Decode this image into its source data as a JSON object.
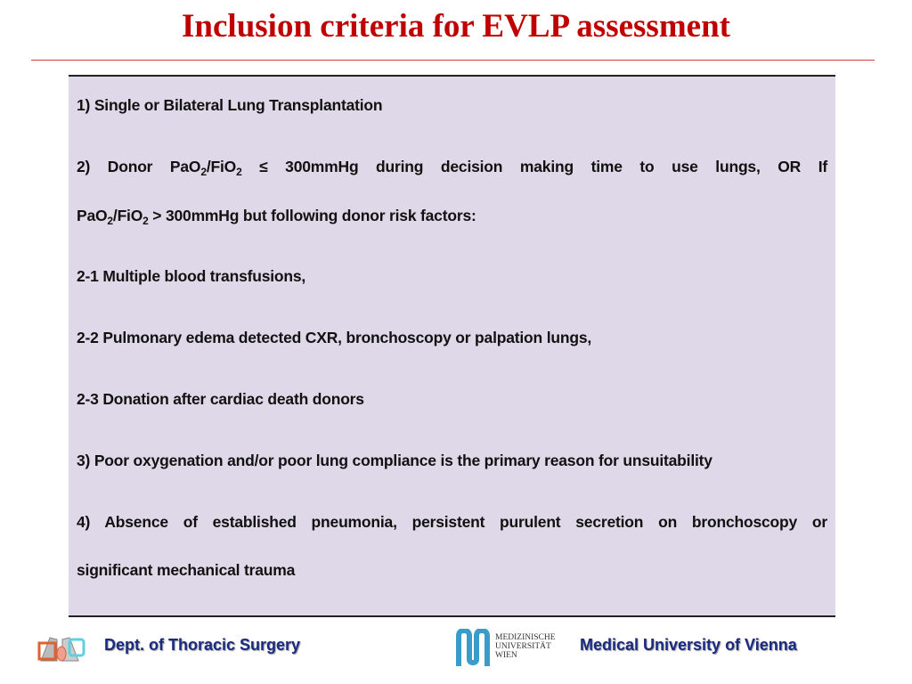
{
  "title": "Inclusion criteria for EVLP assessment",
  "items": {
    "i1": "1) Single or Bilateral Lung Transplantation",
    "i2a": {
      "p1": "2) Donor PaO",
      "s1": "2",
      "p2": "/FiO",
      "s2": "2",
      "p3": " ≤ 300mmHg during decision making time to use lungs, OR If"
    },
    "i2b": {
      "p1": "PaO",
      "s1": "2",
      "p2": "/FiO",
      "s2": "2",
      "p3": " > 300mmHg but following donor risk factors:"
    },
    "i21": "2-1  Multiple blood transfusions,",
    "i22": "2-2  Pulmonary edema detected CXR, bronchoscopy or palpation lungs,",
    "i23": "2-3 Donation after cardiac death donors",
    "i3": "3) Poor oxygenation and/or poor lung compliance is the primary reason for unsuitability",
    "i4a": "4) Absence of established pneumonia, persistent purulent secretion on bronchoscopy or",
    "i4b": "significant mechanical trauma"
  },
  "footer": {
    "dept": "Dept. of Thoracic Surgery",
    "logo_text": [
      "MEDIZINISCHE",
      "UNIVERSITÄT",
      "WIEN"
    ],
    "university": "Medical University of Vienna"
  },
  "colors": {
    "title": "#c00000",
    "box": "#dfd8e8",
    "footer_text": "#1a2a80",
    "logo": "#3a9cc8"
  }
}
